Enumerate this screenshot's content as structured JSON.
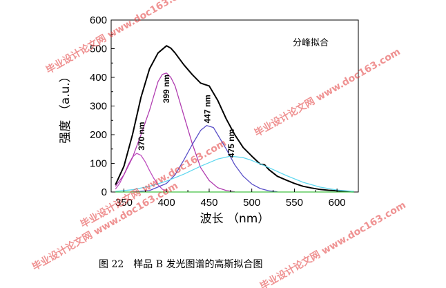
{
  "chart_data": {
    "type": "line",
    "title": "",
    "annotation": "分峰拟合",
    "xlabel": "波长 （nm）",
    "ylabel": "强度 （a.u.）",
    "xlim": [
      335,
      625
    ],
    "ylim": [
      0,
      600
    ],
    "xticks": [
      "350",
      "400",
      "450",
      "500",
      "550",
      "600"
    ],
    "yticks": [
      "0",
      "100",
      "200",
      "300",
      "400",
      "500",
      "600"
    ],
    "grid": false,
    "legend": "none",
    "series": [
      {
        "color": "#000000",
        "x": [
          340,
          350,
          360,
          370,
          380,
          390,
          400,
          405,
          410,
          420,
          430,
          440,
          445,
          450,
          460,
          470,
          480,
          490,
          500,
          510,
          515,
          520,
          530,
          540,
          550,
          560,
          570,
          580,
          590,
          600,
          610,
          620
        ],
        "y": [
          25,
          90,
          200,
          330,
          430,
          485,
          510,
          502,
          485,
          445,
          410,
          380,
          375,
          370,
          320,
          255,
          200,
          155,
          125,
          97,
          95,
          78,
          55,
          42,
          30,
          20,
          14,
          9,
          6,
          4,
          2,
          1
        ]
      },
      {
        "color": "#c050c0",
        "x": [
          340,
          345,
          350,
          355,
          360,
          365,
          370,
          375,
          380,
          385,
          390,
          395,
          400
        ],
        "y": [
          10,
          30,
          60,
          95,
          122,
          135,
          128,
          105,
          75,
          48,
          25,
          10,
          3
        ]
      },
      {
        "color": "#b03cb0",
        "x": [
          340,
          350,
          360,
          370,
          380,
          385,
          390,
          395,
          400,
          405,
          410,
          420,
          430,
          440,
          450,
          460,
          470,
          480
        ],
        "y": [
          20,
          60,
          120,
          200,
          285,
          335,
          385,
          410,
          415,
          400,
          370,
          270,
          170,
          85,
          40,
          15,
          5,
          1
        ]
      },
      {
        "color": "#5a50c8",
        "x": [
          360,
          380,
          400,
          410,
          420,
          430,
          440,
          447,
          455,
          460,
          470,
          480,
          490,
          500,
          510,
          520,
          530
        ],
        "y": [
          0,
          5,
          30,
          60,
          110,
          165,
          215,
          232,
          225,
          200,
          150,
          95,
          55,
          28,
          12,
          4,
          1
        ]
      },
      {
        "color": "#60d8f0",
        "x": [
          340,
          360,
          380,
          400,
          420,
          440,
          460,
          475,
          490,
          500,
          520,
          540,
          560,
          580,
          600,
          620
        ],
        "y": [
          2,
          8,
          20,
          38,
          62,
          90,
          115,
          125,
          120,
          110,
          85,
          58,
          34,
          17,
          7,
          2
        ]
      },
      {
        "color": "#40c040",
        "x": [
          340,
          620
        ],
        "y": [
          0,
          0
        ]
      }
    ],
    "peak_labels": [
      {
        "text": "370 nm",
        "x": 370,
        "y": 145
      },
      {
        "text": "399 nm",
        "x": 399,
        "y": 310
      },
      {
        "text": "447 nm",
        "x": 447,
        "y": 240
      },
      {
        "text": "475 nm",
        "x": 475,
        "y": 120
      }
    ]
  },
  "caption": "图 22　样品 B 发光图谱的高斯拟合图",
  "watermark": "毕业设计论文网 www.doc163.com"
}
